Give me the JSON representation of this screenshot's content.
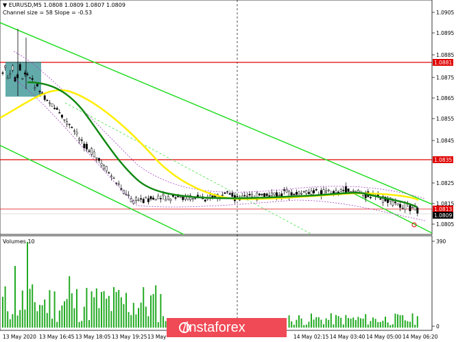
{
  "header": {
    "symbol_line": "EURUSD,M5  1.0808 1.0809 1.0807 1.0809",
    "channel_line": "Channel size = 58 Slope = -0.53",
    "volumes_label": "Volumes 10"
  },
  "price_axis": {
    "ticks": [
      "1.0905",
      "1.0895",
      "1.0885",
      "1.0875",
      "1.0865",
      "1.0855",
      "1.0845",
      "1.0825",
      "1.0815",
      "1.0805"
    ],
    "tags": [
      {
        "label": "1.0881",
        "color": "#e00000"
      },
      {
        "label": "1.0835",
        "color": "#e00000"
      },
      {
        "label": "1.0813",
        "color": "#e00000"
      },
      {
        "label": "1.0809",
        "color": "#000000"
      }
    ]
  },
  "volume_axis": {
    "ticks": [
      "390",
      "0"
    ]
  },
  "time_axis": {
    "ticks": [
      "13 May 2020",
      "13 May 16:45",
      "13 May 18:05",
      "13 May 19:25",
      "13 May",
      "14 May 02:15",
      "14 May 03:40",
      "14 May 05:00",
      "14 May 06:20"
    ]
  },
  "brand": {
    "name": "instaforex",
    "color": "#ef4a56"
  },
  "chart_data": {
    "type": "candlestick",
    "symbol": "EURUSD",
    "timeframe": "M5",
    "last_bar": {
      "open": 1.0808,
      "high": 1.0809,
      "low": 1.0807,
      "close": 1.0809
    },
    "horizontal_levels": [
      1.0881,
      1.0835,
      1.0813
    ],
    "current_price": 1.0809,
    "y_range": [
      1.08,
      1.091
    ],
    "indicators": [
      "moving average (green)",
      "moving average (yellow)",
      "envelope (violet dashed)",
      "regression channel (green)"
    ],
    "volume_max_scale": 390
  }
}
